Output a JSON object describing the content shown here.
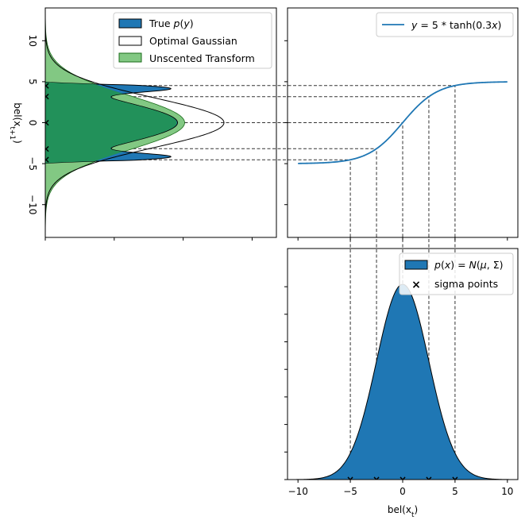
{
  "colors": {
    "blue": "#1f77b4",
    "green": "#2ca02c",
    "green_light": "#82c883",
    "dash": "#333333"
  },
  "chart_data": [
    {
      "id": "transformed-belief",
      "type": "area",
      "orientation": "vertical-density",
      "ylabel": "bel(x_{t+1})",
      "ylabel_display": "bel(xt+1)",
      "ylim": [
        -14,
        14
      ],
      "yticks": [
        -10,
        -5,
        0,
        5,
        10
      ],
      "ytick_labels": [
        "−10",
        "−5",
        "0",
        "5",
        "10"
      ],
      "xtick_count": 4,
      "legend": "top-right",
      "legend_entries": [
        "True p(y)",
        "Optimal Gaussian",
        "Unscented Transform"
      ],
      "series": [
        {
          "name": "True p(y)",
          "kind": "filled",
          "color": "#1f77b4"
        },
        {
          "name": "Optimal Gaussian",
          "kind": "outline",
          "mean": 0,
          "std": 3.05,
          "peak": 1.0
        },
        {
          "name": "Unscented Transform",
          "kind": "filled",
          "color": "#2ca02c",
          "mean": 0,
          "std": 3.3,
          "peak": 0.78
        }
      ],
      "sigma_outputs": [
        -4.5,
        -3.1,
        0,
        3.1,
        4.5
      ]
    },
    {
      "id": "nonlinear-function",
      "type": "line",
      "xlim": [
        -11,
        11
      ],
      "ylim": [
        -14,
        14
      ],
      "xtick_count": 5,
      "ytick_count": 5,
      "legend": "top-right",
      "legend_entries": [
        "y = 5 * tanh(0.3x)"
      ],
      "series": [
        {
          "name": "y = 5 * tanh(0.3x)",
          "formula": "5*tanh(0.3x)",
          "x_range": [
            -10,
            10
          ],
          "color": "#1f77b4"
        }
      ]
    },
    {
      "id": "input-belief",
      "type": "area",
      "xlabel": "bel(x_t)",
      "xlabel_display": "bel(xt)",
      "xlim": [
        -11,
        11
      ],
      "xticks": [
        -10,
        -5,
        0,
        5,
        10
      ],
      "xtick_labels": [
        "−10",
        "−5",
        "0",
        "5",
        "10"
      ],
      "ytick_count": 8,
      "legend": "top-right",
      "legend_entries": [
        "p(x) = N(μ, Σ)",
        "sigma points"
      ],
      "series": [
        {
          "name": "p(x) = N(μ, Σ)",
          "mean": 0,
          "std": 2.5,
          "color": "#1f77b4"
        }
      ],
      "sigma_points": [
        -5,
        -2.5,
        0,
        2.5,
        5
      ]
    }
  ]
}
